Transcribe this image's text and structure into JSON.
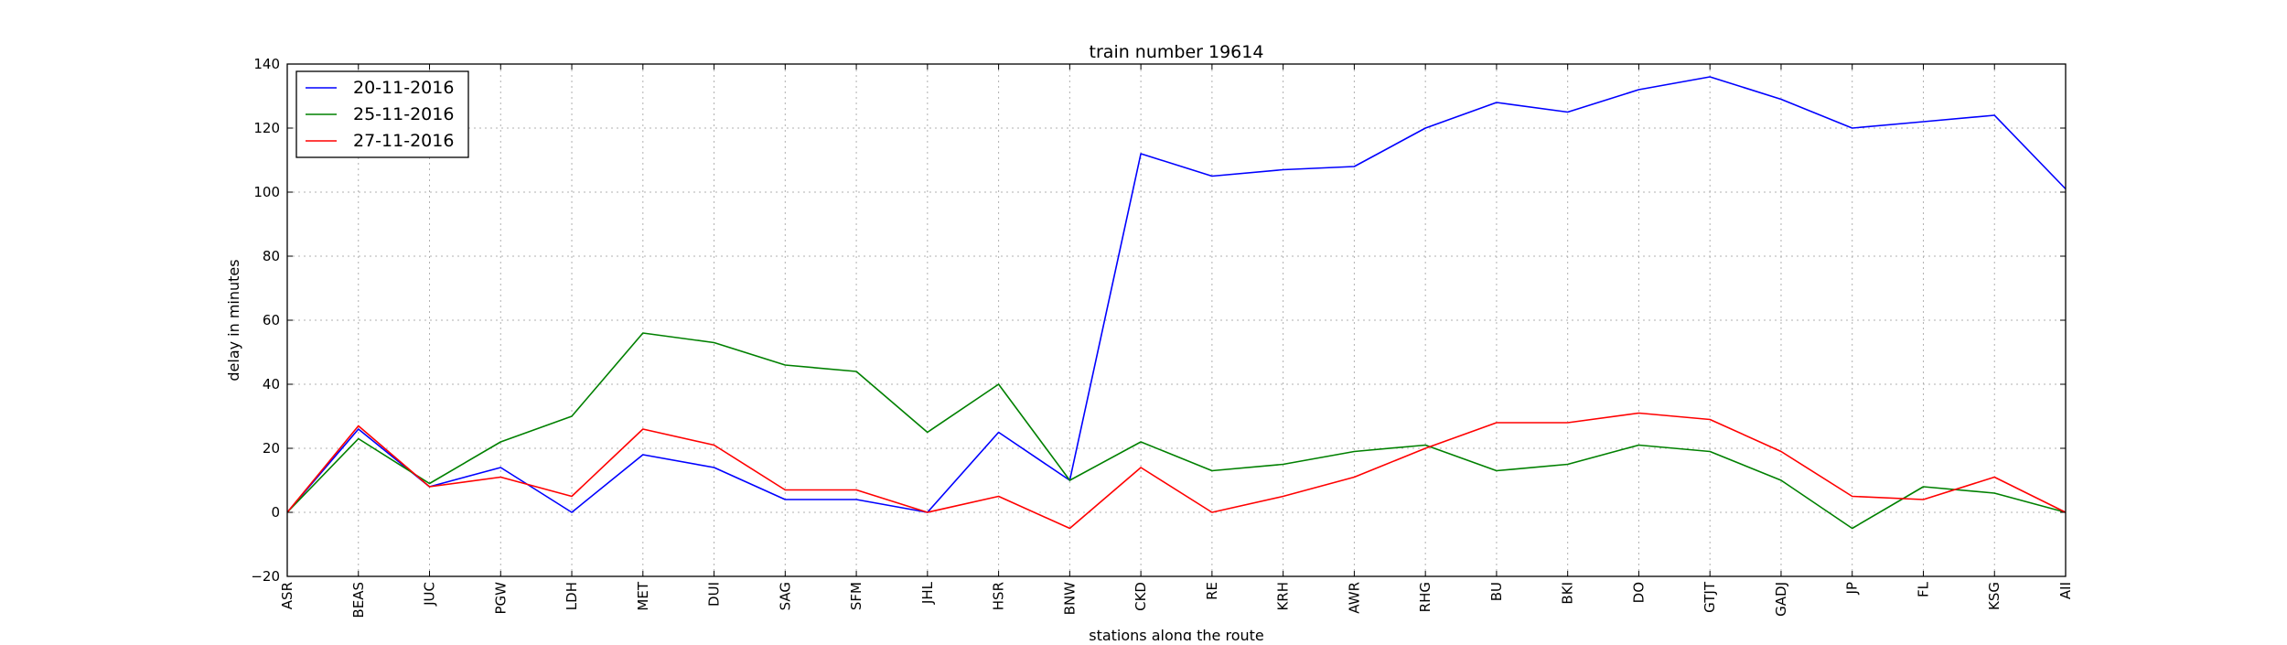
{
  "chart_data": {
    "type": "line",
    "title": "train number 19614",
    "xlabel": "stations along the route",
    "ylabel": "delay in minutes",
    "ylim": [
      -20,
      140
    ],
    "yticks": [
      -20,
      0,
      20,
      40,
      60,
      80,
      100,
      120,
      140
    ],
    "grid": true,
    "legend_position": "top-left",
    "categories": [
      "ASR",
      "BEAS",
      "JUC",
      "PGW",
      "LDH",
      "MET",
      "DUI",
      "SAG",
      "SFM",
      "JHL",
      "HSR",
      "BNW",
      "CKD",
      "RE",
      "KRH",
      "AWR",
      "RHG",
      "BU",
      "BKI",
      "DO",
      "GTJT",
      "GADJ",
      "JP",
      "FL",
      "KSG",
      "AII"
    ],
    "series": [
      {
        "name": "20-11-2016",
        "color": "#0000ff",
        "values": [
          0,
          26,
          8,
          14,
          0,
          18,
          14,
          4,
          4,
          0,
          25,
          10,
          112,
          105,
          107,
          108,
          120,
          128,
          125,
          132,
          136,
          129,
          120,
          122,
          124,
          101
        ]
      },
      {
        "name": "25-11-2016",
        "color": "#008000",
        "values": [
          0,
          23,
          9,
          22,
          30,
          56,
          53,
          46,
          44,
          25,
          40,
          10,
          22,
          13,
          15,
          19,
          21,
          13,
          15,
          21,
          19,
          10,
          -5,
          8,
          6,
          0
        ]
      },
      {
        "name": "27-11-2016",
        "color": "#ff0000",
        "values": [
          0,
          27,
          8,
          11,
          5,
          26,
          21,
          7,
          7,
          0,
          5,
          -5,
          14,
          0,
          5,
          11,
          20,
          28,
          28,
          31,
          29,
          19,
          5,
          4,
          11,
          0
        ]
      }
    ]
  }
}
